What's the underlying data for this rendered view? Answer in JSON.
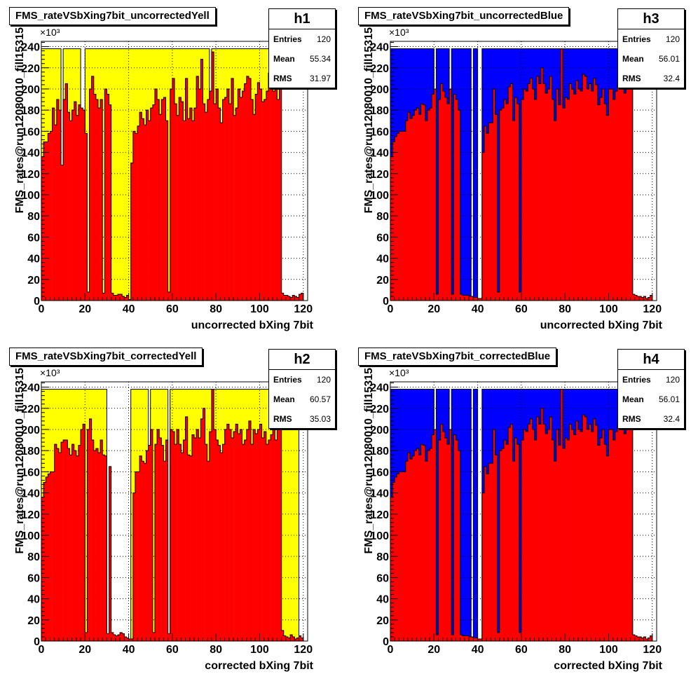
{
  "colors": {
    "red": "#ff0000",
    "yellow": "#ffff00",
    "blue": "#0000ff",
    "frame": "#000000",
    "grid": "#000000"
  },
  "chart_data": [
    {
      "id": "h1",
      "type": "bar",
      "title": "FMS_rateVSbXing7bit_uncorrectedYell",
      "xlabel": "uncorrected bXing 7bit",
      "ylabel": "FMS_rates@run12080010_fill15315",
      "exponent": "×10³",
      "xlim": [
        0,
        122
      ],
      "ylim": [
        0,
        245
      ],
      "xticks": [
        "0",
        "20",
        "40",
        "60",
        "80",
        "100",
        "120"
      ],
      "yticks": [
        "0",
        "20",
        "40",
        "60",
        "80",
        "100",
        "120",
        "140",
        "160",
        "180",
        "200",
        "220",
        "240"
      ],
      "grid": true,
      "stats": {
        "name": "h1",
        "entries_label": "Entries",
        "entries": "120",
        "mean_label": "Mean",
        "mean": "55.34",
        "rms_label": "RMS",
        "rms": "31.97"
      },
      "background": {
        "color": "yellow",
        "level": 238,
        "ranges": [
          [
            0,
            9
          ],
          [
            10,
            18
          ],
          [
            20,
            77
          ],
          [
            78,
            110
          ]
        ]
      },
      "red_values": [
        136,
        150,
        150,
        158,
        160,
        182,
        166,
        190,
        180,
        128,
        190,
        205,
        178,
        170,
        180,
        188,
        175,
        185,
        182,
        180,
        158,
        8,
        200,
        212,
        195,
        190,
        182,
        190,
        7,
        200,
        195,
        185,
        7,
        5,
        5,
        6,
        6,
        4,
        3,
        5,
        1,
        130,
        160,
        158,
        165,
        178,
        172,
        166,
        180,
        170,
        182,
        185,
        200,
        190,
        176,
        190,
        192,
        170,
        8,
        200,
        210,
        186,
        175,
        192,
        188,
        170,
        210,
        172,
        182,
        170,
        182,
        212,
        200,
        228,
        186,
        178,
        190,
        198,
        235,
        186,
        200,
        182,
        168,
        190,
        192,
        200,
        186,
        210,
        175,
        182,
        200,
        192,
        198,
        205,
        212,
        210,
        190,
        176,
        195,
        206,
        200,
        188,
        190,
        198,
        215,
        220,
        198,
        202,
        190,
        212,
        7,
        5,
        5,
        4,
        3,
        5,
        4,
        3,
        6,
        7
      ]
    },
    {
      "id": "h3",
      "type": "bar",
      "title": "FMS_rateVSbXing7bit_uncorrectedBlue",
      "xlabel": "uncorrected bXing 7bit",
      "ylabel": "FMS_rates@run12080010_fill15315",
      "exponent": "×10³",
      "xlim": [
        0,
        122
      ],
      "ylim": [
        0,
        245
      ],
      "xticks": [
        "0",
        "20",
        "40",
        "60",
        "80",
        "100",
        "120"
      ],
      "yticks": [
        "0",
        "20",
        "40",
        "60",
        "80",
        "100",
        "120",
        "140",
        "160",
        "180",
        "200",
        "220",
        "240"
      ],
      "grid": true,
      "stats": {
        "name": "h3",
        "entries_label": "Entries",
        "entries": "120",
        "mean_label": "Mean",
        "mean": "56.01",
        "rms_label": "RMS",
        "rms": "32.4"
      },
      "background": {
        "color": "blue",
        "level": 238,
        "ranges": [
          [
            0,
            20
          ],
          [
            21,
            27
          ],
          [
            28,
            37
          ],
          [
            38,
            40
          ],
          [
            42,
            111
          ]
        ]
      },
      "red_values": [
        136,
        150,
        155,
        158,
        160,
        160,
        160,
        170,
        178,
        172,
        175,
        180,
        182,
        176,
        186,
        185,
        170,
        180,
        182,
        195,
        200,
        6,
        190,
        205,
        198,
        192,
        186,
        200,
        6,
        195,
        190,
        180,
        6,
        5,
        5,
        5,
        4,
        4,
        3,
        3,
        2,
        2,
        140,
        165,
        158,
        168,
        168,
        200,
        176,
        8,
        180,
        182,
        190,
        186,
        202,
        205,
        170,
        192,
        186,
        8,
        190,
        200,
        198,
        205,
        210,
        200,
        190,
        212,
        205,
        220,
        205,
        196,
        200,
        212,
        190,
        170,
        200,
        185,
        238,
        182,
        192,
        190,
        205,
        200,
        195,
        208,
        200,
        198,
        214,
        212,
        200,
        205,
        198,
        210,
        204,
        185,
        192,
        200,
        186,
        175,
        200,
        200,
        190,
        198,
        205,
        210,
        200,
        196,
        205,
        200,
        205,
        6,
        5,
        4,
        4,
        3,
        4,
        2,
        3,
        5
      ]
    },
    {
      "id": "h2",
      "type": "bar",
      "title": "FMS_rateVSbXing7bit_correctedYell",
      "xlabel": "corrected bXing 7bit",
      "ylabel": "FMS_rates@run12080010_fill15315",
      "exponent": "×10³",
      "xlim": [
        0,
        122
      ],
      "ylim": [
        0,
        245
      ],
      "xticks": [
        "0",
        "20",
        "40",
        "60",
        "80",
        "100",
        "120"
      ],
      "yticks": [
        "0",
        "20",
        "40",
        "60",
        "80",
        "100",
        "120",
        "140",
        "160",
        "180",
        "200",
        "220",
        "240"
      ],
      "grid": true,
      "stats": {
        "name": "h2",
        "entries_label": "Entries",
        "entries": "120",
        "mean_label": "Mean",
        "mean": "60.57",
        "rms_label": "RMS",
        "rms": "35.03"
      },
      "background": {
        "color": "yellow",
        "level": 238,
        "ranges": [
          [
            0,
            30
          ],
          [
            41,
            49
          ],
          [
            50,
            58
          ],
          [
            59,
            118
          ]
        ]
      },
      "red_values": [
        136,
        150,
        155,
        158,
        160,
        160,
        186,
        182,
        178,
        188,
        190,
        190,
        182,
        176,
        186,
        180,
        175,
        185,
        200,
        205,
        8,
        200,
        210,
        190,
        180,
        182,
        178,
        190,
        176,
        175,
        7,
        165,
        8,
        6,
        5,
        6,
        8,
        7,
        4,
        3,
        2,
        2,
        140,
        160,
        160,
        175,
        170,
        168,
        180,
        185,
        200,
        8,
        186,
        200,
        192,
        185,
        170,
        190,
        7,
        200,
        198,
        186,
        200,
        186,
        178,
        190,
        212,
        176,
        175,
        195,
        192,
        200,
        192,
        210,
        220,
        186,
        170,
        198,
        238,
        200,
        190,
        185,
        178,
        186,
        200,
        205,
        200,
        192,
        198,
        205,
        196,
        200,
        186,
        190,
        200,
        208,
        186,
        200,
        196,
        200,
        205,
        192,
        198,
        186,
        190,
        195,
        200,
        190,
        205,
        200,
        10,
        5,
        4,
        3,
        6,
        4,
        2,
        3,
        5,
        3
      ]
    },
    {
      "id": "h4",
      "type": "bar",
      "title": "FMS_rateVSbXing7bit_correctedBlue",
      "xlabel": "corrected bXing 7bit",
      "ylabel": "FMS_rates@run12080010_fill15315",
      "exponent": "×10³",
      "xlim": [
        0,
        122
      ],
      "ylim": [
        0,
        245
      ],
      "xticks": [
        "0",
        "20",
        "40",
        "60",
        "80",
        "100",
        "120"
      ],
      "yticks": [
        "0",
        "20",
        "40",
        "60",
        "80",
        "100",
        "120",
        "140",
        "160",
        "180",
        "200",
        "220",
        "240"
      ],
      "grid": true,
      "stats": {
        "name": "h4",
        "entries_label": "Entries",
        "entries": "120",
        "mean_label": "Mean",
        "mean": "56.01",
        "rms_label": "RMS",
        "rms": "32.4"
      },
      "background": {
        "color": "blue",
        "level": 238,
        "ranges": [
          [
            0,
            20
          ],
          [
            21,
            27
          ],
          [
            28,
            37
          ],
          [
            38,
            40
          ],
          [
            42,
            111
          ]
        ]
      },
      "red_values": [
        136,
        150,
        155,
        158,
        160,
        160,
        160,
        170,
        178,
        172,
        175,
        180,
        182,
        176,
        186,
        185,
        170,
        180,
        182,
        195,
        200,
        6,
        190,
        205,
        198,
        192,
        186,
        200,
        6,
        195,
        190,
        180,
        6,
        5,
        5,
        5,
        4,
        4,
        3,
        3,
        2,
        2,
        140,
        165,
        158,
        168,
        168,
        200,
        176,
        8,
        180,
        182,
        190,
        186,
        202,
        205,
        170,
        192,
        186,
        8,
        190,
        200,
        198,
        205,
        210,
        200,
        190,
        212,
        205,
        220,
        205,
        196,
        200,
        212,
        190,
        170,
        200,
        185,
        238,
        182,
        192,
        190,
        205,
        200,
        195,
        208,
        200,
        198,
        214,
        212,
        200,
        205,
        198,
        210,
        204,
        185,
        192,
        200,
        186,
        175,
        200,
        200,
        190,
        198,
        205,
        210,
        200,
        196,
        205,
        200,
        205,
        6,
        5,
        4,
        4,
        3,
        4,
        2,
        3,
        5
      ]
    }
  ]
}
